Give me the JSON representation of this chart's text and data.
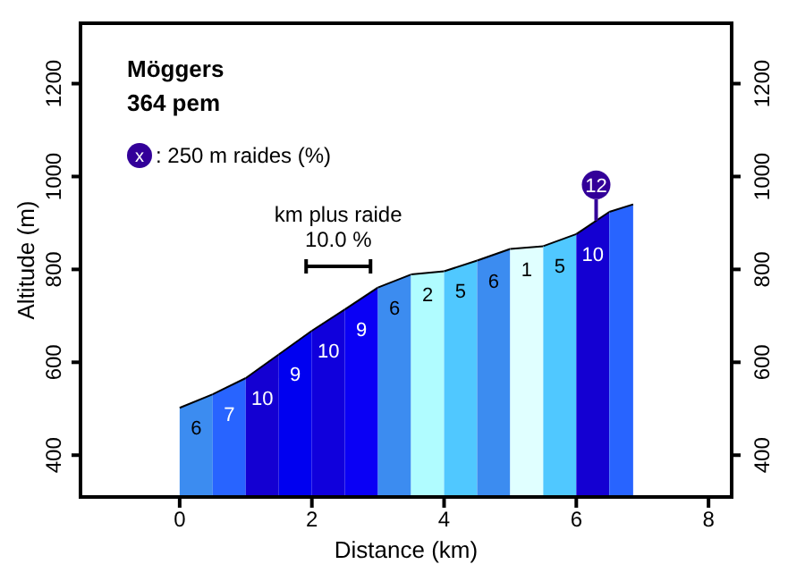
{
  "chart_data": {
    "type": "area",
    "title": "Möggers",
    "subtitle": "364 pem",
    "xlabel": "Distance (km)",
    "ylabel": "Altitude (m)",
    "series": [
      {
        "color": "#3c8cf0",
        "x": [
          0,
          0.5
        ],
        "values": [
          502,
          531
        ]
      },
      {
        "color": "#2864ff",
        "x": [
          0.5,
          1
        ],
        "values": [
          531,
          566
        ]
      },
      {
        "color": "#1400d2",
        "x": [
          1,
          1.5
        ],
        "values": [
          566,
          617
        ]
      },
      {
        "color": "#0000f0",
        "x": [
          1.5,
          2
        ],
        "values": [
          617,
          668
        ]
      },
      {
        "color": "#1000dc",
        "x": [
          2,
          2.5
        ],
        "values": [
          668,
          714
        ]
      },
      {
        "color": "#0a00f5",
        "x": [
          2.5,
          3
        ],
        "values": [
          714,
          761
        ]
      },
      {
        "color": "#3c8cf0",
        "x": [
          3,
          3.5
        ],
        "values": [
          761,
          789
        ]
      },
      {
        "color": "#b0fcff",
        "x": [
          3.5,
          4
        ],
        "values": [
          789,
          796
        ]
      },
      {
        "color": "#50c8ff",
        "x": [
          4,
          4.5
        ],
        "values": [
          796,
          819
        ]
      },
      {
        "color": "#3c8cf0",
        "x": [
          4.5,
          5
        ],
        "values": [
          819,
          844
        ]
      },
      {
        "color": "#e0ffff",
        "x": [
          5,
          5.5
        ],
        "values": [
          844,
          850
        ]
      },
      {
        "color": "#50c8ff",
        "x": [
          5.5,
          6
        ],
        "values": [
          850,
          876
        ]
      },
      {
        "color": "#1400d2",
        "x": [
          6,
          6.5
        ],
        "values": [
          876,
          924
        ]
      },
      {
        "color": "#2864ff",
        "x": [
          6.5,
          6.86
        ],
        "values": [
          924,
          940
        ]
      }
    ],
    "xlim": [
      -1.5,
      8.35
    ],
    "xticks": [
      0,
      2,
      4,
      6,
      8
    ],
    "ylim": [
      310,
      1330
    ],
    "yticks": [
      400,
      600,
      800,
      1000,
      1200
    ],
    "y2lim": [
      310,
      1330
    ],
    "y2ticks": [
      400,
      600,
      800,
      1000,
      1200
    ],
    "annotations": [
      "x : 250 m raides (%)",
      "km plus raide",
      "10.0 %",
      "6",
      "7",
      "10",
      "9",
      "10",
      "9",
      "6",
      "2",
      "5",
      "6",
      "1",
      "5",
      "10",
      {
        "text": "12",
        "x": 6.3,
        "y": 905
      }
    ]
  }
}
